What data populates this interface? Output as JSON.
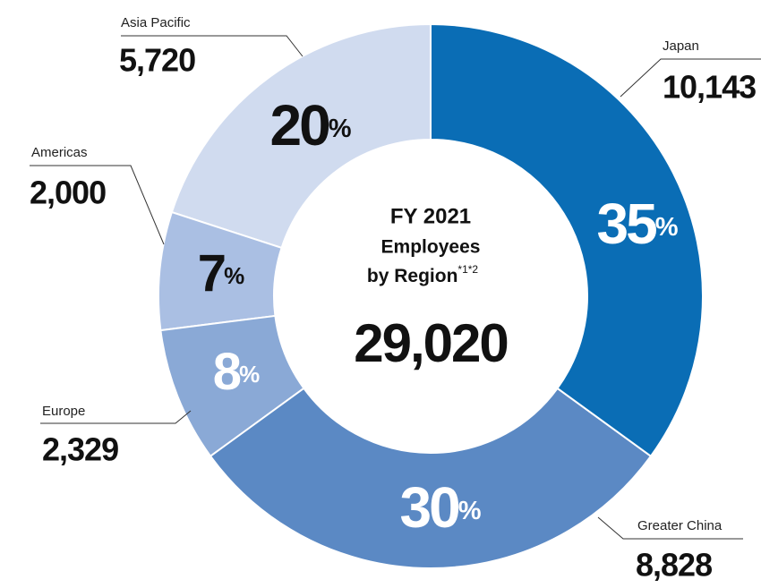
{
  "chart_data": {
    "type": "pie",
    "donut": true,
    "title_lines": [
      "FY 2021",
      "Employees",
      "by Region"
    ],
    "footnote_marks": "*1*2",
    "total": 29020,
    "total_label": "29,020",
    "categories": [
      "Japan",
      "Greater China",
      "Europe",
      "Americas",
      "Asia Pacific"
    ],
    "values": [
      35,
      30,
      8,
      7,
      20
    ],
    "value_labels": [
      "35%",
      "30%",
      "8%",
      "7%",
      "20%"
    ],
    "colors": [
      "#0a6db5",
      "#5b89c4",
      "#8aa9d6",
      "#aabfe3",
      "#d0dbef"
    ],
    "employees": [
      10143,
      8828,
      2329,
      2000,
      5720
    ],
    "employee_labels": [
      "10,143",
      "8,828",
      "2,329",
      "2,000",
      "5,720"
    ]
  }
}
